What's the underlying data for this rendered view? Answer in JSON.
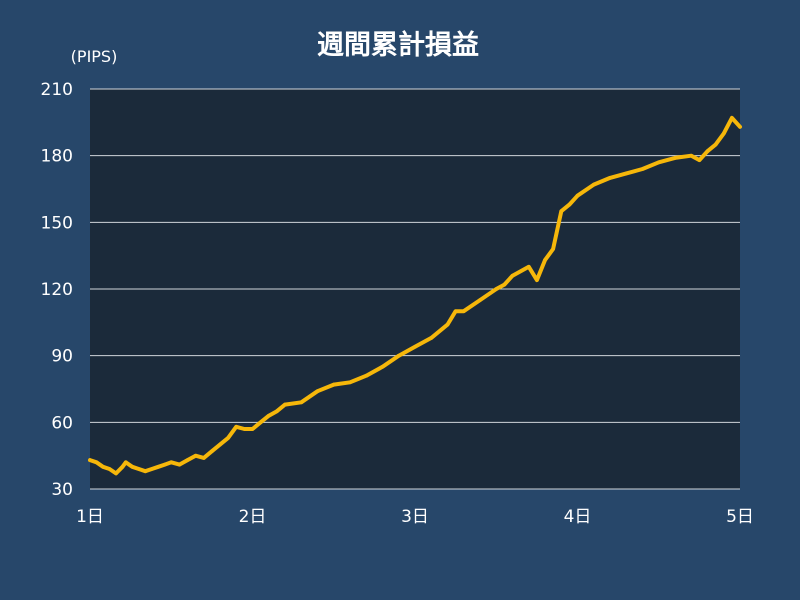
{
  "chart_data": {
    "type": "line",
    "title": "週間累計損益",
    "y_unit_label": "(PIPS)",
    "xlabel": "",
    "ylabel": "",
    "x_tick_labels": [
      "1日",
      "2日",
      "3日",
      "4日",
      "5日"
    ],
    "x_ticks": [
      1,
      2,
      3,
      4,
      5
    ],
    "xlim": [
      1,
      5
    ],
    "y_ticks": [
      30,
      60,
      90,
      120,
      150,
      180,
      210
    ],
    "ylim": [
      30,
      210
    ],
    "grid": true,
    "colors": {
      "background": "#27476a",
      "plot_area": "#1b2a3a",
      "grid": "#d0d5da",
      "line": "#f6b70a",
      "text": "#ffffff"
    },
    "series": [
      {
        "name": "",
        "x": [
          1.0,
          1.04,
          1.08,
          1.12,
          1.16,
          1.2,
          1.22,
          1.26,
          1.3,
          1.34,
          1.38,
          1.42,
          1.46,
          1.5,
          1.55,
          1.6,
          1.65,
          1.7,
          1.75,
          1.8,
          1.85,
          1.9,
          1.95,
          2.0,
          2.05,
          2.1,
          2.15,
          2.2,
          2.3,
          2.4,
          2.5,
          2.6,
          2.7,
          2.8,
          2.9,
          3.0,
          3.1,
          3.2,
          3.25,
          3.3,
          3.4,
          3.5,
          3.55,
          3.6,
          3.7,
          3.75,
          3.8,
          3.85,
          3.9,
          3.95,
          4.0,
          4.1,
          4.2,
          4.3,
          4.4,
          4.5,
          4.6,
          4.7,
          4.75,
          4.8,
          4.85,
          4.9,
          4.95,
          5.0
        ],
        "values": [
          43,
          42,
          40,
          39,
          37,
          40,
          42,
          40,
          39,
          38,
          39,
          40,
          41,
          42,
          41,
          43,
          45,
          44,
          47,
          50,
          53,
          58,
          57,
          57,
          60,
          63,
          65,
          68,
          69,
          74,
          77,
          78,
          81,
          85,
          90,
          94,
          98,
          104,
          110,
          110,
          115,
          120,
          122,
          126,
          130,
          124,
          133,
          138,
          155,
          158,
          162,
          167,
          170,
          172,
          174,
          177,
          179,
          180,
          178,
          182,
          185,
          190,
          197,
          193
        ]
      }
    ]
  }
}
